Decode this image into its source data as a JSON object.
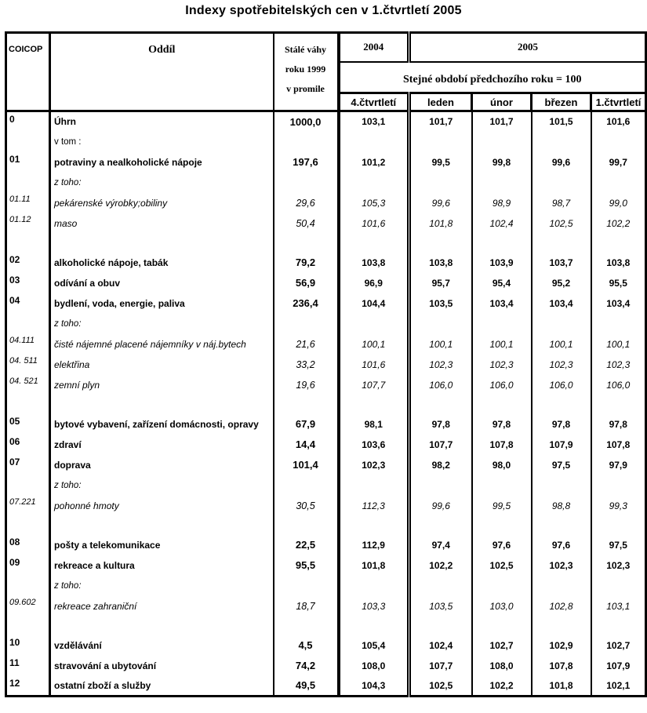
{
  "title": "Indexy spotřebitelských cen v 1.čtvrtletí 2005",
  "table": {
    "header": {
      "coicop": "COICOP",
      "oddil": "Oddíl",
      "weights": "Stálé váhy\nroku 1999\nv promile",
      "year_2004": "2004",
      "year_2005": "2005",
      "reference_note": "Stejné období předchozího roku = 100",
      "periods": [
        "4.čtvrtletí",
        "leden",
        "únor",
        "březen",
        "1.čtvrtletí"
      ]
    },
    "rows": [
      {
        "type": "main",
        "code": "0",
        "label": "Úhrn",
        "weight": "1000,0",
        "values": [
          "103,1",
          "101,7",
          "101,7",
          "101,5",
          "101,6"
        ]
      },
      {
        "type": "note_plain",
        "code": "",
        "label": "v tom :",
        "weight": "",
        "values": [
          "",
          "",
          "",
          "",
          ""
        ]
      },
      {
        "type": "main",
        "code": "01",
        "label": "potraviny a nealkoholické nápoje",
        "weight": "197,6",
        "values": [
          "101,2",
          "99,5",
          "99,8",
          "99,6",
          "99,7"
        ]
      },
      {
        "type": "note_italic",
        "code": "",
        "label": "z toho:",
        "weight": "",
        "values": [
          "",
          "",
          "",
          "",
          ""
        ]
      },
      {
        "type": "sub",
        "code": "01.11",
        "label": "pekárenské výrobky;obiliny",
        "weight": "29,6",
        "values": [
          "105,3",
          "99,6",
          "98,9",
          "98,7",
          "99,0"
        ]
      },
      {
        "type": "sub",
        "code": "01.12",
        "label": "maso",
        "weight": "50,4",
        "values": [
          "101,6",
          "101,8",
          "102,4",
          "102,5",
          "102,2"
        ]
      },
      {
        "type": "spacer",
        "code": "",
        "label": "",
        "weight": "",
        "values": [
          "",
          "",
          "",
          "",
          ""
        ]
      },
      {
        "type": "main",
        "code": "02",
        "label": "alkoholické nápoje, tabák",
        "weight": "79,2",
        "values": [
          "103,8",
          "103,8",
          "103,9",
          "103,7",
          "103,8"
        ]
      },
      {
        "type": "main",
        "code": "03",
        "label": "odívání a obuv",
        "weight": "56,9",
        "values": [
          "96,9",
          "95,7",
          "95,4",
          "95,2",
          "95,5"
        ]
      },
      {
        "type": "main",
        "code": "04",
        "label": "bydlení, voda, energie, paliva",
        "weight": "236,4",
        "values": [
          "104,4",
          "103,5",
          "103,4",
          "103,4",
          "103,4"
        ]
      },
      {
        "type": "note_italic",
        "code": "",
        "label": "z toho:",
        "weight": "",
        "values": [
          "",
          "",
          "",
          "",
          ""
        ]
      },
      {
        "type": "sub",
        "code": "04.111",
        "label": "čisté nájemné placené nájemníky v náj.bytech",
        "weight": "21,6",
        "values": [
          "100,1",
          "100,1",
          "100,1",
          "100,1",
          "100,1"
        ]
      },
      {
        "type": "sub",
        "code": "04. 511",
        "label": "elektřina",
        "weight": "33,2",
        "values": [
          "101,6",
          "102,3",
          "102,3",
          "102,3",
          "102,3"
        ]
      },
      {
        "type": "sub",
        "code": "04. 521",
        "label": "zemní plyn",
        "weight": "19,6",
        "values": [
          "107,7",
          "106,0",
          "106,0",
          "106,0",
          "106,0"
        ]
      },
      {
        "type": "spacer",
        "code": "",
        "label": "",
        "weight": "",
        "values": [
          "",
          "",
          "",
          "",
          ""
        ]
      },
      {
        "type": "main",
        "code": "05",
        "label": "bytové vybavení, zařízení domácnosti, opravy",
        "weight": "67,9",
        "values": [
          "98,1",
          "97,8",
          "97,8",
          "97,8",
          "97,8"
        ]
      },
      {
        "type": "main",
        "code": "06",
        "label": "zdraví",
        "weight": "14,4",
        "values": [
          "103,6",
          "107,7",
          "107,8",
          "107,9",
          "107,8"
        ]
      },
      {
        "type": "main",
        "code": "07",
        "label": "doprava",
        "weight": "101,4",
        "values": [
          "102,3",
          "98,2",
          "98,0",
          "97,5",
          "97,9"
        ]
      },
      {
        "type": "note_italic",
        "code": "",
        "label": "z toho:",
        "weight": "",
        "values": [
          "",
          "",
          "",
          "",
          ""
        ]
      },
      {
        "type": "sub",
        "code": "07.221",
        "label": "pohonné hmoty",
        "weight": "30,5",
        "values": [
          "112,3",
          "99,6",
          "99,5",
          "98,8",
          "99,3"
        ]
      },
      {
        "type": "spacer",
        "code": "",
        "label": "",
        "weight": "",
        "values": [
          "",
          "",
          "",
          "",
          ""
        ]
      },
      {
        "type": "main",
        "code": "08",
        "label": "pošty a telekomunikace",
        "weight": "22,5",
        "values": [
          "112,9",
          "97,4",
          "97,6",
          "97,6",
          "97,5"
        ]
      },
      {
        "type": "main",
        "code": "09",
        "label": "rekreace a kultura",
        "weight": "95,5",
        "values": [
          "101,8",
          "102,2",
          "102,5",
          "102,3",
          "102,3"
        ]
      },
      {
        "type": "note_italic",
        "code": "",
        "label": "z toho:",
        "weight": "",
        "values": [
          "",
          "",
          "",
          "",
          ""
        ]
      },
      {
        "type": "sub",
        "code": "09.602",
        "label": "rekreace zahraniční",
        "weight": "18,7",
        "values": [
          "103,3",
          "103,5",
          "103,0",
          "102,8",
          "103,1"
        ]
      },
      {
        "type": "spacer",
        "code": "",
        "label": "",
        "weight": "",
        "values": [
          "",
          "",
          "",
          "",
          ""
        ]
      },
      {
        "type": "main",
        "code": "10",
        "label": "vzdělávání",
        "weight": "4,5",
        "values": [
          "105,4",
          "102,4",
          "102,7",
          "102,9",
          "102,7"
        ]
      },
      {
        "type": "main",
        "code": "11",
        "label": "stravování a ubytování",
        "weight": "74,2",
        "values": [
          "108,0",
          "107,7",
          "108,0",
          "107,8",
          "107,9"
        ]
      },
      {
        "type": "main",
        "code": "12",
        "label": "ostatní zboží a služby",
        "weight": "49,5",
        "values": [
          "104,3",
          "102,5",
          "102,2",
          "101,8",
          "102,1"
        ]
      }
    ]
  }
}
